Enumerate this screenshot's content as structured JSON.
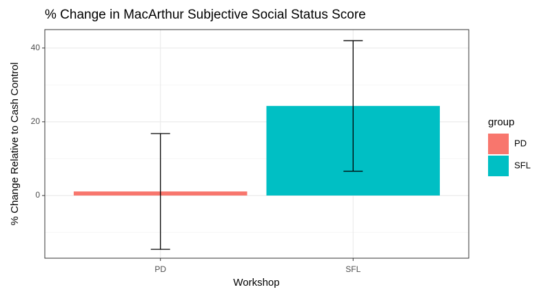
{
  "chart_data": {
    "type": "bar",
    "title": "% Change in MacArthur Subjective Social Status Score",
    "x_label": "Workshop",
    "y_label": "% Change Relative to Cash Control",
    "categories": [
      "PD",
      "SFL"
    ],
    "values": [
      1.1,
      24.3
    ],
    "errors": [
      15.7,
      17.7
    ],
    "colors": [
      "#F8766D",
      "#00BFC4"
    ],
    "legend_title": "group",
    "legend": "right",
    "ylim": [
      -17,
      45
    ],
    "yticks": [
      0,
      20,
      40
    ],
    "minor_yticks": [
      -10,
      10,
      30
    ],
    "grid": true
  }
}
